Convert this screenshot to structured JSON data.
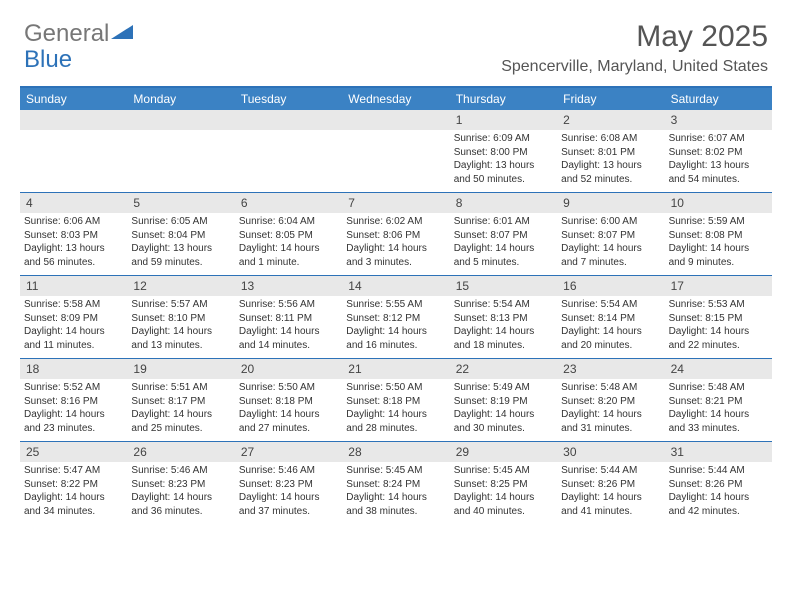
{
  "brand": {
    "general": "General",
    "blue": "Blue"
  },
  "title": "May 2025",
  "location": "Spencerville, Maryland, United States",
  "colors": {
    "header_bg": "#3b82c4",
    "border": "#2d72b8",
    "num_band_bg": "#e8e8e8",
    "text": "#333333",
    "header_text": "#ffffff"
  },
  "days_of_week": [
    "Sunday",
    "Monday",
    "Tuesday",
    "Wednesday",
    "Thursday",
    "Friday",
    "Saturday"
  ],
  "weeks": [
    [
      null,
      null,
      null,
      null,
      {
        "n": "1",
        "sr": "6:09 AM",
        "ss": "8:00 PM",
        "dl": "13 hours and 50 minutes."
      },
      {
        "n": "2",
        "sr": "6:08 AM",
        "ss": "8:01 PM",
        "dl": "13 hours and 52 minutes."
      },
      {
        "n": "3",
        "sr": "6:07 AM",
        "ss": "8:02 PM",
        "dl": "13 hours and 54 minutes."
      }
    ],
    [
      {
        "n": "4",
        "sr": "6:06 AM",
        "ss": "8:03 PM",
        "dl": "13 hours and 56 minutes."
      },
      {
        "n": "5",
        "sr": "6:05 AM",
        "ss": "8:04 PM",
        "dl": "13 hours and 59 minutes."
      },
      {
        "n": "6",
        "sr": "6:04 AM",
        "ss": "8:05 PM",
        "dl": "14 hours and 1 minute."
      },
      {
        "n": "7",
        "sr": "6:02 AM",
        "ss": "8:06 PM",
        "dl": "14 hours and 3 minutes."
      },
      {
        "n": "8",
        "sr": "6:01 AM",
        "ss": "8:07 PM",
        "dl": "14 hours and 5 minutes."
      },
      {
        "n": "9",
        "sr": "6:00 AM",
        "ss": "8:07 PM",
        "dl": "14 hours and 7 minutes."
      },
      {
        "n": "10",
        "sr": "5:59 AM",
        "ss": "8:08 PM",
        "dl": "14 hours and 9 minutes."
      }
    ],
    [
      {
        "n": "11",
        "sr": "5:58 AM",
        "ss": "8:09 PM",
        "dl": "14 hours and 11 minutes."
      },
      {
        "n": "12",
        "sr": "5:57 AM",
        "ss": "8:10 PM",
        "dl": "14 hours and 13 minutes."
      },
      {
        "n": "13",
        "sr": "5:56 AM",
        "ss": "8:11 PM",
        "dl": "14 hours and 14 minutes."
      },
      {
        "n": "14",
        "sr": "5:55 AM",
        "ss": "8:12 PM",
        "dl": "14 hours and 16 minutes."
      },
      {
        "n": "15",
        "sr": "5:54 AM",
        "ss": "8:13 PM",
        "dl": "14 hours and 18 minutes."
      },
      {
        "n": "16",
        "sr": "5:54 AM",
        "ss": "8:14 PM",
        "dl": "14 hours and 20 minutes."
      },
      {
        "n": "17",
        "sr": "5:53 AM",
        "ss": "8:15 PM",
        "dl": "14 hours and 22 minutes."
      }
    ],
    [
      {
        "n": "18",
        "sr": "5:52 AM",
        "ss": "8:16 PM",
        "dl": "14 hours and 23 minutes."
      },
      {
        "n": "19",
        "sr": "5:51 AM",
        "ss": "8:17 PM",
        "dl": "14 hours and 25 minutes."
      },
      {
        "n": "20",
        "sr": "5:50 AM",
        "ss": "8:18 PM",
        "dl": "14 hours and 27 minutes."
      },
      {
        "n": "21",
        "sr": "5:50 AM",
        "ss": "8:18 PM",
        "dl": "14 hours and 28 minutes."
      },
      {
        "n": "22",
        "sr": "5:49 AM",
        "ss": "8:19 PM",
        "dl": "14 hours and 30 minutes."
      },
      {
        "n": "23",
        "sr": "5:48 AM",
        "ss": "8:20 PM",
        "dl": "14 hours and 31 minutes."
      },
      {
        "n": "24",
        "sr": "5:48 AM",
        "ss": "8:21 PM",
        "dl": "14 hours and 33 minutes."
      }
    ],
    [
      {
        "n": "25",
        "sr": "5:47 AM",
        "ss": "8:22 PM",
        "dl": "14 hours and 34 minutes."
      },
      {
        "n": "26",
        "sr": "5:46 AM",
        "ss": "8:23 PM",
        "dl": "14 hours and 36 minutes."
      },
      {
        "n": "27",
        "sr": "5:46 AM",
        "ss": "8:23 PM",
        "dl": "14 hours and 37 minutes."
      },
      {
        "n": "28",
        "sr": "5:45 AM",
        "ss": "8:24 PM",
        "dl": "14 hours and 38 minutes."
      },
      {
        "n": "29",
        "sr": "5:45 AM",
        "ss": "8:25 PM",
        "dl": "14 hours and 40 minutes."
      },
      {
        "n": "30",
        "sr": "5:44 AM",
        "ss": "8:26 PM",
        "dl": "14 hours and 41 minutes."
      },
      {
        "n": "31",
        "sr": "5:44 AM",
        "ss": "8:26 PM",
        "dl": "14 hours and 42 minutes."
      }
    ]
  ],
  "labels": {
    "sunrise": "Sunrise:",
    "sunset": "Sunset:",
    "daylight": "Daylight:"
  }
}
